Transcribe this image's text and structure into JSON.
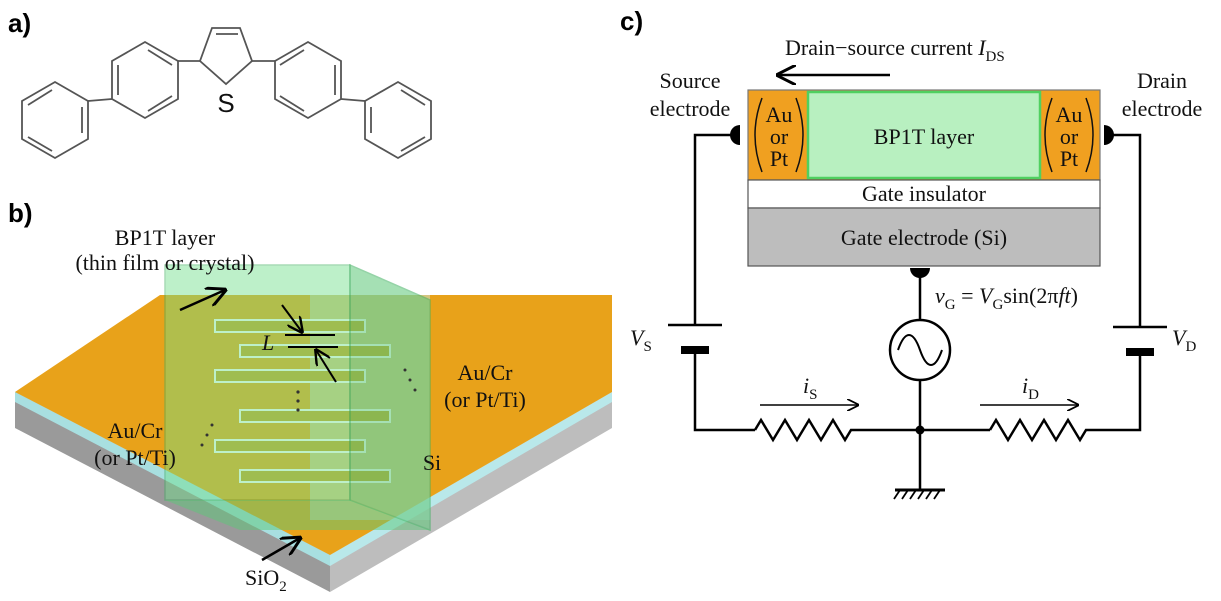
{
  "panels": {
    "a": {
      "label": "a)",
      "atom": "S"
    },
    "b": {
      "label": "b)",
      "layer": [
        "BP1T layer",
        "(thin film or crystal)"
      ],
      "gap": "L",
      "electrode_left": [
        "Au/Cr",
        "(or Pt/Ti)"
      ],
      "electrode_right": [
        "Au/Cr",
        "(or Pt/Ti)"
      ],
      "substrate": "Si",
      "oxide": {
        "text": "SiO",
        "sub": "2"
      }
    },
    "c": {
      "label": "c)",
      "current": {
        "text": "Drain−source current ",
        "symbol": "I",
        "sub": "DS"
      },
      "source": [
        "Source",
        "electrode"
      ],
      "drain": [
        "Drain",
        "electrode"
      ],
      "contact_left": [
        "Au",
        "or",
        "Pt"
      ],
      "contact_right": [
        "Au",
        "or",
        "Pt"
      ],
      "channel": "BP1T layer",
      "insulator": "Gate insulator",
      "gate": "Gate electrode (Si)",
      "gate_voltage": [
        "v",
        "G",
        " = ",
        "V",
        "G",
        "sin(2π",
        "ft",
        ")"
      ],
      "vs": {
        "symbol": "V",
        "sub": "S"
      },
      "vd": {
        "symbol": "V",
        "sub": "D"
      },
      "is": {
        "symbol": "i",
        "sub": "S"
      },
      "id": {
        "symbol": "i",
        "sub": "D"
      }
    }
  }
}
